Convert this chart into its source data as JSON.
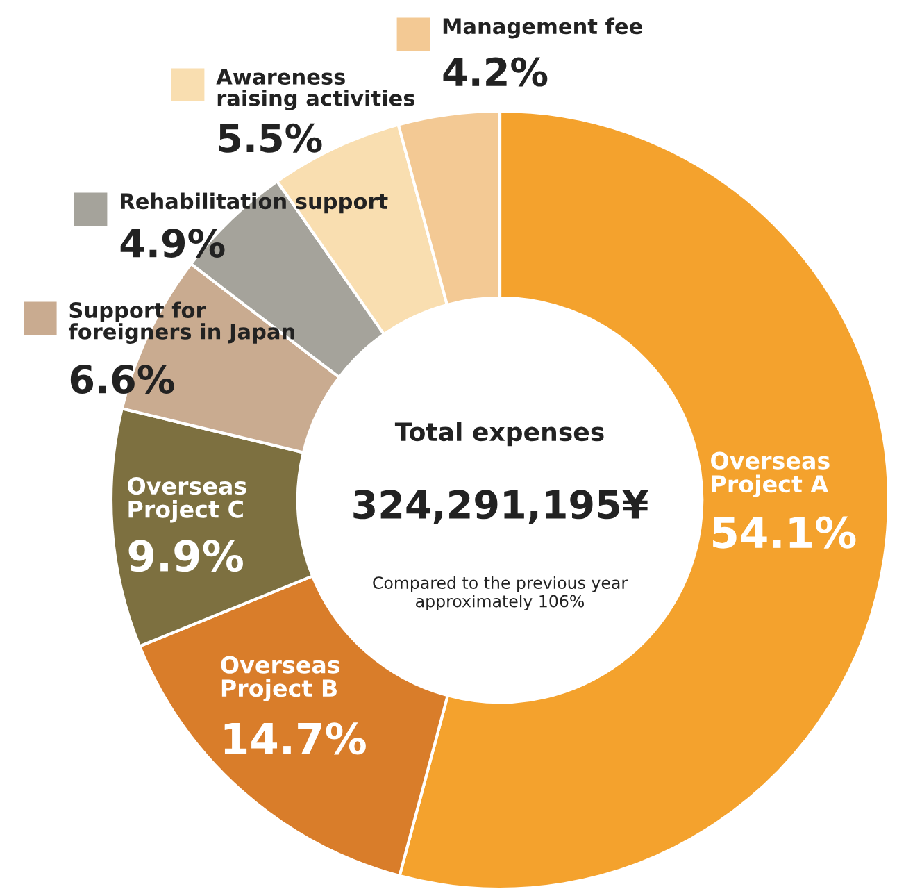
{
  "chart_data": {
    "type": "donut",
    "categories": [
      "Overseas\nProject A",
      "Overseas\nProject B",
      "Overseas\nProject C",
      "Support for\nforeigners in Japan",
      "Rehabilitation support",
      "Awareness\nraising activities",
      "Management fee"
    ],
    "values": [
      54.1,
      14.7,
      9.9,
      6.6,
      4.9,
      5.5,
      4.2
    ],
    "value_labels": [
      "54.1%",
      "14.7%",
      "9.9%",
      "6.6%",
      "4.9%",
      "5.5%",
      "4.2%"
    ],
    "colors": [
      "#f4a22d",
      "#d97d2a",
      "#7d7040",
      "#c9ab90",
      "#a5a39b",
      "#f9deb0",
      "#f3c994"
    ],
    "annotations": [
      "Total expenses",
      "324,291,195¥",
      "Compared to the previous year\napproximately 106%"
    ],
    "legend": "top left"
  }
}
